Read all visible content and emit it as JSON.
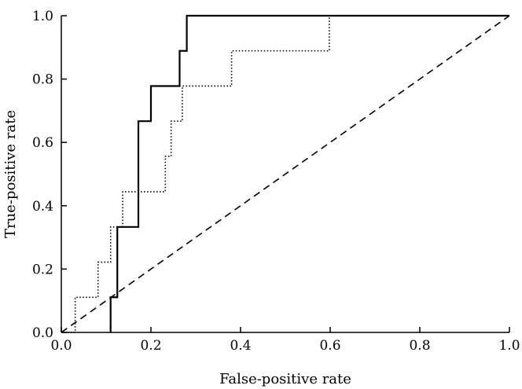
{
  "chart_data": {
    "type": "line",
    "xlabel": "False-positive rate",
    "ylabel": "True-positive rate",
    "xlim": [
      0.0,
      1.0
    ],
    "ylim": [
      0.0,
      1.0
    ],
    "x_ticks": [
      "0.0",
      "0.2",
      "0.4",
      "0.6",
      "0.8",
      "1.0"
    ],
    "y_ticks": [
      "0.0",
      "0.2",
      "0.4",
      "0.6",
      "0.8",
      "1.0"
    ],
    "grid": false,
    "series": [
      {
        "style": "solid",
        "color": "#000000",
        "points": [
          [
            0.11,
            0.0
          ],
          [
            0.11,
            0.111
          ],
          [
            0.125,
            0.111
          ],
          [
            0.125,
            0.333
          ],
          [
            0.172,
            0.333
          ],
          [
            0.172,
            0.667
          ],
          [
            0.2,
            0.667
          ],
          [
            0.2,
            0.778
          ],
          [
            0.264,
            0.778
          ],
          [
            0.264,
            0.889
          ],
          [
            0.28,
            0.889
          ],
          [
            0.28,
            1.0
          ],
          [
            1.0,
            1.0
          ]
        ]
      },
      {
        "style": "dotted",
        "color": "#000000",
        "points": [
          [
            0.0,
            0.0
          ],
          [
            0.031,
            0.0
          ],
          [
            0.031,
            0.111
          ],
          [
            0.082,
            0.111
          ],
          [
            0.082,
            0.222
          ],
          [
            0.11,
            0.222
          ],
          [
            0.11,
            0.333
          ],
          [
            0.137,
            0.333
          ],
          [
            0.137,
            0.444
          ],
          [
            0.232,
            0.444
          ],
          [
            0.232,
            0.556
          ],
          [
            0.245,
            0.556
          ],
          [
            0.245,
            0.667
          ],
          [
            0.27,
            0.667
          ],
          [
            0.27,
            0.778
          ],
          [
            0.38,
            0.778
          ],
          [
            0.38,
            0.889
          ],
          [
            0.598,
            0.889
          ],
          [
            0.598,
            1.0
          ],
          [
            1.0,
            1.0
          ]
        ]
      },
      {
        "style": "dashed",
        "color": "#000000",
        "points": [
          [
            0.0,
            0.0
          ],
          [
            1.0,
            1.0
          ]
        ]
      }
    ]
  }
}
